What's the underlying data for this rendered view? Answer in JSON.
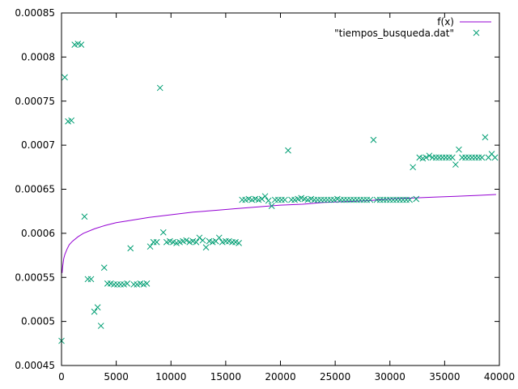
{
  "chart_data": {
    "type": "scatter",
    "title": "",
    "xlabel": "",
    "ylabel": "",
    "xlim": [
      0,
      40000
    ],
    "ylim": [
      0.00045,
      0.00085
    ],
    "grid": false,
    "legend_position": "top-right",
    "x_ticks": [
      0,
      5000,
      10000,
      15000,
      20000,
      25000,
      30000,
      35000,
      40000
    ],
    "x_tick_labels": [
      "0",
      "5000",
      "10000",
      "15000",
      "20000",
      "25000",
      "30000",
      "35000",
      "40000"
    ],
    "y_ticks": [
      0.00045,
      0.0005,
      0.00055,
      0.0006,
      0.00065,
      0.0007,
      0.00075,
      0.0008,
      0.00085
    ],
    "y_tick_labels": [
      "0.00045",
      "0.0005",
      "0.00055",
      "0.0006",
      "0.00065",
      "0.0007",
      "0.00075",
      "0.0008",
      "0.00085"
    ],
    "series": [
      {
        "name": "f(x)",
        "kind": "line",
        "color": "#9400d3",
        "x": [
          50,
          100,
          200,
          300,
          500,
          700,
          1000,
          1500,
          2000,
          3000,
          4000,
          5000,
          6000,
          8000,
          10000,
          12000,
          14000,
          16000,
          18000,
          20000,
          22000,
          24000,
          26000,
          28000,
          30000,
          32000,
          34000,
          36000,
          38000,
          39700
        ],
        "y": [
          0.000555,
          0.000562,
          0.000571,
          0.000576,
          0.000582,
          0.000587,
          0.000591,
          0.000596,
          0.0006,
          0.000605,
          0.000609,
          0.000612,
          0.000614,
          0.000618,
          0.000621,
          0.000624,
          0.000626,
          0.000628,
          0.00063,
          0.000632,
          0.000633,
          0.000635,
          0.000636,
          0.000637,
          0.000639,
          0.00064,
          0.000641,
          0.000642,
          0.000643,
          0.000644
        ]
      },
      {
        "name": "\"tiempos_busqueda.dat\"",
        "kind": "points",
        "marker": "x",
        "color": "#009e73",
        "x": [
          0,
          300,
          600,
          900,
          1200,
          1500,
          1800,
          2100,
          2400,
          2700,
          3000,
          3300,
          3600,
          3900,
          4200,
          4500,
          4800,
          5100,
          5400,
          5700,
          6000,
          6300,
          6600,
          6900,
          7200,
          7500,
          7800,
          8100,
          8400,
          8700,
          9000,
          9300,
          9600,
          9900,
          10200,
          10500,
          10800,
          11100,
          11400,
          11700,
          12000,
          12300,
          12600,
          12900,
          13200,
          13500,
          13800,
          14100,
          14400,
          14700,
          15000,
          15300,
          15600,
          15900,
          16200,
          16500,
          16800,
          17100,
          17400,
          17700,
          18000,
          18300,
          18600,
          18900,
          19200,
          19500,
          19800,
          20100,
          20400,
          20700,
          21000,
          21300,
          21600,
          21900,
          22200,
          22500,
          22800,
          23100,
          23400,
          23700,
          24000,
          24300,
          24600,
          24900,
          25200,
          25500,
          25800,
          26100,
          26400,
          26700,
          27000,
          27300,
          27600,
          27900,
          28200,
          28500,
          28800,
          29100,
          29400,
          29700,
          30000,
          30300,
          30600,
          30900,
          31200,
          31500,
          31800,
          32100,
          32400,
          32700,
          33000,
          33300,
          33600,
          33900,
          34200,
          34500,
          34800,
          35100,
          35400,
          35700,
          36000,
          36300,
          36600,
          36900,
          37200,
          37500,
          37800,
          38100,
          38400,
          38700,
          39000,
          39300,
          39600
        ],
        "y": [
          0.000478,
          0.000777,
          0.000727,
          0.000728,
          0.000814,
          0.000815,
          0.000814,
          0.000619,
          0.000548,
          0.000548,
          0.000511,
          0.000516,
          0.000495,
          0.000561,
          0.000543,
          0.000543,
          0.000542,
          0.000542,
          0.000542,
          0.000542,
          0.000543,
          0.000583,
          0.000542,
          0.000542,
          0.000543,
          0.000542,
          0.000543,
          0.000585,
          0.00059,
          0.00059,
          0.000765,
          0.000601,
          0.00059,
          0.000591,
          0.00059,
          0.000589,
          0.00059,
          0.000591,
          0.000592,
          0.00059,
          0.000591,
          0.00059,
          0.000595,
          0.000592,
          0.000584,
          0.000591,
          0.00059,
          0.000591,
          0.000595,
          0.00059,
          0.000591,
          0.000591,
          0.00059,
          0.00059,
          0.000589,
          0.000638,
          0.000638,
          0.000639,
          0.000638,
          0.000639,
          0.000638,
          0.000639,
          0.000642,
          0.000637,
          0.000631,
          0.000638,
          0.000638,
          0.000638,
          0.000638,
          0.000694,
          0.000638,
          0.000638,
          0.000639,
          0.00064,
          0.000639,
          0.000638,
          0.000639,
          0.000638,
          0.000638,
          0.000638,
          0.000638,
          0.000638,
          0.000638,
          0.000638,
          0.000639,
          0.000638,
          0.000638,
          0.000638,
          0.000638,
          0.000638,
          0.000638,
          0.000638,
          0.000638,
          0.000638,
          0.000638,
          0.000706,
          0.000638,
          0.000638,
          0.000638,
          0.000638,
          0.000638,
          0.000638,
          0.000638,
          0.000638,
          0.000638,
          0.000638,
          0.000638,
          0.000675,
          0.000639,
          0.000686,
          0.000685,
          0.000686,
          0.000688,
          0.000686,
          0.000686,
          0.000686,
          0.000686,
          0.000686,
          0.000686,
          0.000686,
          0.000678,
          0.000695,
          0.000686,
          0.000686,
          0.000686,
          0.000686,
          0.000686,
          0.000686,
          0.000686,
          0.000709,
          0.000686,
          0.00069,
          0.000686
        ]
      }
    ]
  }
}
